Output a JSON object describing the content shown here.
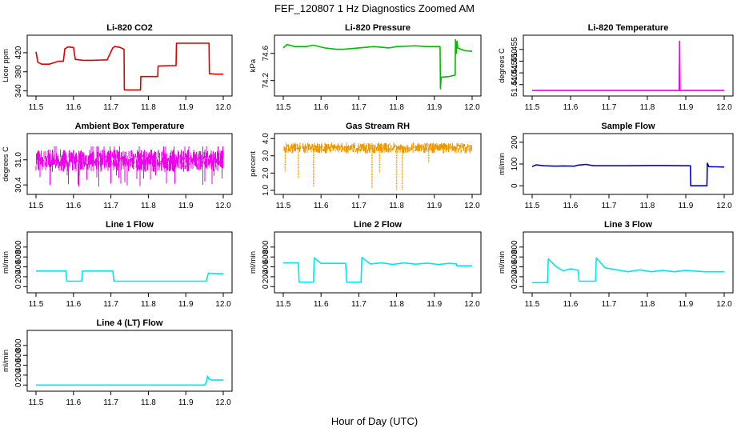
{
  "figure": {
    "title": "FEF_120807  1 Hz Diagnostics Zoomed AM",
    "xlabel": "Hour of Day (UTC)"
  },
  "chart_data": [
    {
      "id": "li820-co2",
      "type": "line",
      "title": "Li-820 CO2",
      "ylabel": "Licor ppm",
      "xlim": [
        11.5,
        12.0
      ],
      "ylim": [
        336,
        450
      ],
      "xticks": [
        11.5,
        11.6,
        11.7,
        11.8,
        11.9,
        12.0
      ],
      "xtick_labels": [
        "11.5",
        "11.6",
        "11.7",
        "11.8",
        "11.9",
        "12.0"
      ],
      "yticks": [
        340,
        380,
        420
      ],
      "ytick_labels": [
        "340",
        "380",
        "420"
      ],
      "color": "#dd0000",
      "series": [
        {
          "x": [
            11.5,
            11.505,
            11.515,
            11.535,
            11.56,
            11.573,
            11.577,
            11.585,
            11.6,
            11.605,
            11.625,
            11.65,
            11.69,
            11.705,
            11.71,
            11.725,
            11.735,
            11.736,
            11.75,
            11.77,
            11.779,
            11.78,
            11.795,
            11.8,
            11.81,
            11.825,
            11.826,
            11.86,
            11.874,
            11.875,
            11.905,
            11.962,
            11.963,
            11.98,
            12.0
          ],
          "y": [
            422,
            400,
            396,
            396,
            402,
            402,
            428,
            432,
            431,
            406,
            404,
            404,
            405,
            430,
            433,
            431,
            427,
            342,
            342,
            342,
            342,
            370,
            370,
            370,
            370,
            370,
            392,
            393,
            393,
            440,
            440,
            440,
            376,
            375,
            375
          ]
        }
      ]
    },
    {
      "id": "li820-pressure",
      "type": "line",
      "title": "Li-820 Pressure",
      "ylabel": "kPa",
      "xlim": [
        11.5,
        12.0
      ],
      "ylim": [
        74.02,
        74.82
      ],
      "xticks": [
        11.5,
        11.6,
        11.7,
        11.8,
        11.9,
        12.0
      ],
      "xtick_labels": [
        "11.5",
        "11.6",
        "11.7",
        "11.8",
        "11.9",
        "12.0"
      ],
      "yticks": [
        74.2,
        74.6
      ],
      "ytick_labels": [
        "74.2",
        "74.6"
      ],
      "color": "#00bb00",
      "series": [
        {
          "x": [
            11.5,
            11.51,
            11.53,
            11.56,
            11.58,
            11.61,
            11.64,
            11.66,
            11.7,
            11.74,
            11.78,
            11.8,
            11.85,
            11.88,
            11.91,
            11.915,
            11.916,
            11.918,
            11.92,
            11.94,
            11.955,
            11.956,
            11.958,
            11.96,
            11.962,
            11.98,
            12.0
          ],
          "y": [
            74.68,
            74.73,
            74.7,
            74.7,
            74.72,
            74.68,
            74.66,
            74.66,
            74.68,
            74.7,
            74.68,
            74.7,
            74.71,
            74.7,
            74.7,
            74.7,
            74.08,
            74.25,
            74.25,
            74.26,
            74.28,
            74.8,
            74.6,
            74.78,
            74.68,
            74.64,
            74.63
          ]
        }
      ]
    },
    {
      "id": "li820-temperature",
      "type": "line",
      "title": "Li-820 Temperature",
      "ylabel": "degrees C",
      "xlim": [
        11.5,
        12.0
      ],
      "ylim": [
        51.4365,
        51.4597
      ],
      "xticks": [
        11.5,
        11.6,
        11.7,
        11.8,
        11.9,
        12.0
      ],
      "xtick_labels": [
        "11.5",
        "11.6",
        "11.7",
        "11.8",
        "11.9",
        "12.0"
      ],
      "yticks": [
        51.44,
        51.445,
        51.45,
        51.455
      ],
      "ytick_labels": [
        "51.440",
        "51.445",
        "51.450",
        "51.455"
      ],
      "color": "#ee00ee",
      "series": [
        {
          "x": [
            11.5,
            11.883,
            11.884,
            11.885,
            12.0
          ],
          "y": [
            51.4375,
            51.4375,
            51.4585,
            51.4375,
            51.4375
          ]
        }
      ]
    },
    {
      "id": "ambient-box-temperature",
      "type": "line",
      "title": "Ambient Box Temperature",
      "ylabel": "degrees C",
      "xlim": [
        11.5,
        12.0
      ],
      "ylim": [
        30.25,
        31.55
      ],
      "xticks": [
        11.5,
        11.6,
        11.7,
        11.8,
        11.9,
        12.0
      ],
      "xtick_labels": [
        "11.5",
        "11.6",
        "11.7",
        "11.8",
        "11.9",
        "12.0"
      ],
      "yticks": [
        30.4,
        31.0
      ],
      "ytick_labels": [
        "30.4",
        "31.0"
      ],
      "color": "#ee00ee",
      "noise": {
        "center": 30.98,
        "amplitude": 0.24,
        "spikes": 0.62
      },
      "series": [
        {
          "x": [
            11.5,
            12.0
          ],
          "y": [
            30.98,
            30.98
          ]
        }
      ]
    },
    {
      "id": "gas-stream-rh",
      "type": "line",
      "title": "Gas Stream RH",
      "ylabel": "percent",
      "xlim": [
        11.5,
        12.0
      ],
      "ylim": [
        0.95,
        4.1
      ],
      "xticks": [
        11.5,
        11.6,
        11.7,
        11.8,
        11.9,
        12.0
      ],
      "xtick_labels": [
        "11.5",
        "11.6",
        "11.7",
        "11.8",
        "11.9",
        "12.0"
      ],
      "yticks": [
        1.0,
        2.0,
        3.0,
        4.0
      ],
      "ytick_labels": [
        "1.0",
        "2.0",
        "3.0",
        "4.0"
      ],
      "color": "#ee9900",
      "noise": {
        "center": 3.45,
        "amplitude": 0.28,
        "spikes": 0.0
      },
      "dips": [
        {
          "x": 11.505,
          "y": 2.1
        },
        {
          "x": 11.54,
          "y": 1.7
        },
        {
          "x": 11.58,
          "y": 1.2
        },
        {
          "x": 11.735,
          "y": 1.1
        },
        {
          "x": 11.755,
          "y": 2.0
        },
        {
          "x": 11.8,
          "y": 1.0
        },
        {
          "x": 11.815,
          "y": 1.05
        },
        {
          "x": 11.885,
          "y": 2.6
        }
      ],
      "series": [
        {
          "x": [
            11.5,
            12.0
          ],
          "y": [
            3.45,
            3.45
          ]
        }
      ]
    },
    {
      "id": "sample-flow",
      "type": "line",
      "title": "Sample Flow",
      "ylabel": "ml/min",
      "xlim": [
        11.5,
        12.0
      ],
      "ylim": [
        -25,
        225
      ],
      "xticks": [
        11.5,
        11.6,
        11.7,
        11.8,
        11.9,
        12.0
      ],
      "xtick_labels": [
        "11.5",
        "11.6",
        "11.7",
        "11.8",
        "11.9",
        "12.0"
      ],
      "yticks": [
        0,
        100,
        200
      ],
      "ytick_labels": [
        "0",
        "100",
        "200"
      ],
      "color": "#0000cc",
      "series": [
        {
          "x": [
            11.5,
            11.51,
            11.53,
            11.56,
            11.58,
            11.61,
            11.62,
            11.64,
            11.66,
            11.7,
            11.75,
            11.8,
            11.85,
            11.89,
            11.912,
            11.913,
            11.95,
            11.955,
            11.956,
            11.96,
            11.97,
            11.98,
            12.0
          ],
          "y": [
            88,
            96,
            92,
            90,
            91,
            90,
            95,
            98,
            92,
            92,
            92,
            93,
            93,
            92,
            92,
            0,
            0,
            0,
            104,
            88,
            87,
            87,
            86
          ]
        }
      ]
    },
    {
      "id": "line1-flow",
      "type": "line",
      "title": "Line 1 Flow",
      "ylabel": "ml/min",
      "xlim": [
        11.5,
        12.0
      ],
      "ylim": [
        -60,
        1040
      ],
      "xticks": [
        11.5,
        11.6,
        11.7,
        11.8,
        11.9,
        12.0
      ],
      "xtick_labels": [
        "11.5",
        "11.6",
        "11.7",
        "11.8",
        "11.9",
        "12.0"
      ],
      "yticks": [
        0,
        200,
        400,
        600,
        800
      ],
      "ytick_labels": [
        "0",
        "200",
        "400",
        "600",
        "800"
      ],
      "color": "#00e5ee",
      "series": [
        {
          "x": [
            11.5,
            11.58,
            11.582,
            11.622,
            11.624,
            11.705,
            11.708,
            11.955,
            11.96,
            12.0
          ],
          "y": [
            315,
            315,
            110,
            110,
            315,
            315,
            110,
            110,
            270,
            260
          ]
        }
      ]
    },
    {
      "id": "line2-flow",
      "type": "line",
      "title": "Line 2 Flow",
      "ylabel": "ml/min",
      "xlim": [
        11.5,
        12.0
      ],
      "ylim": [
        -60,
        1040
      ],
      "xticks": [
        11.5,
        11.6,
        11.7,
        11.8,
        11.9,
        12.0
      ],
      "xtick_labels": [
        "11.5",
        "11.6",
        "11.7",
        "11.8",
        "11.9",
        "12.0"
      ],
      "yticks": [
        0,
        200,
        400,
        600,
        800
      ],
      "ytick_labels": [
        "0",
        "200",
        "400",
        "600",
        "800"
      ],
      "color": "#00e5ee",
      "series": [
        {
          "x": [
            11.5,
            11.54,
            11.542,
            11.58,
            11.582,
            11.6,
            11.665,
            11.668,
            11.706,
            11.708,
            11.73,
            11.76,
            11.79,
            11.82,
            11.85,
            11.88,
            11.91,
            11.94,
            11.958,
            11.96,
            12.0
          ],
          "y": [
            480,
            480,
            90,
            90,
            580,
            470,
            470,
            90,
            90,
            590,
            460,
            480,
            450,
            480,
            455,
            475,
            450,
            470,
            460,
            420,
            420
          ]
        }
      ]
    },
    {
      "id": "line3-flow",
      "type": "line",
      "title": "Line 3 Flow",
      "ylabel": "ml/min",
      "xlim": [
        11.5,
        12.0
      ],
      "ylim": [
        -60,
        1040
      ],
      "xticks": [
        11.5,
        11.6,
        11.7,
        11.8,
        11.9,
        12.0
      ],
      "xtick_labels": [
        "11.5",
        "11.6",
        "11.7",
        "11.8",
        "11.9",
        "12.0"
      ],
      "yticks": [
        0,
        200,
        400,
        600,
        800
      ],
      "ytick_labels": [
        "0",
        "200",
        "400",
        "600",
        "800"
      ],
      "color": "#00e5ee",
      "series": [
        {
          "x": [
            11.5,
            11.54,
            11.542,
            11.56,
            11.58,
            11.6,
            11.62,
            11.622,
            11.665,
            11.667,
            11.69,
            11.72,
            11.75,
            11.78,
            11.81,
            11.84,
            11.87,
            11.9,
            11.93,
            11.95,
            12.0
          ],
          "y": [
            80,
            80,
            560,
            420,
            320,
            360,
            330,
            110,
            110,
            580,
            380,
            340,
            300,
            340,
            300,
            330,
            300,
            330,
            310,
            300,
            300
          ]
        }
      ]
    },
    {
      "id": "line4-lt-flow",
      "type": "line",
      "title": "Line 4 (LT) Flow",
      "ylabel": "ml/min",
      "xlim": [
        11.5,
        12.0
      ],
      "ylim": [
        -60,
        1040
      ],
      "xticks": [
        11.5,
        11.6,
        11.7,
        11.8,
        11.9,
        12.0
      ],
      "xtick_labels": [
        "11.5",
        "11.6",
        "11.7",
        "11.8",
        "11.9",
        "12.0"
      ],
      "yticks": [
        0,
        200,
        400,
        600,
        800
      ],
      "ytick_labels": [
        "0",
        "200",
        "400",
        "600",
        "800"
      ],
      "color": "#00e5ee",
      "series": [
        {
          "x": [
            11.5,
            11.95,
            11.955,
            11.958,
            11.962,
            11.97,
            12.0
          ],
          "y": [
            0,
            0,
            60,
            180,
            120,
            100,
            100
          ]
        }
      ]
    }
  ]
}
